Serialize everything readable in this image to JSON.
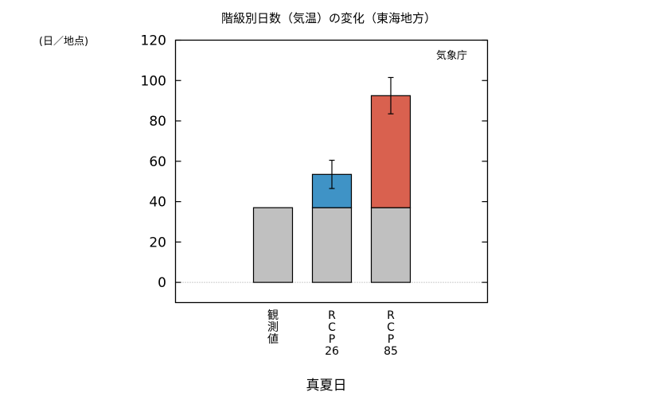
{
  "chart_data": {
    "type": "bar",
    "title": "階級別日数（気温）の変化（東海地方）",
    "ylabel": "(日／地点)",
    "xlabel": "真夏日",
    "credit": "気象庁",
    "ylim": [
      -10,
      120
    ],
    "yticks": [
      0,
      20,
      40,
      60,
      80,
      100,
      120
    ],
    "grid": false,
    "categories": [
      {
        "label_lines": [
          "観",
          "測",
          "値"
        ]
      },
      {
        "label_lines": [
          "R",
          "C",
          "P",
          "26"
        ]
      },
      {
        "label_lines": [
          "R",
          "C",
          "P",
          "85"
        ]
      }
    ],
    "series": [
      {
        "role": "base",
        "color": "#c0c0c0",
        "values": [
          37,
          37,
          37
        ]
      },
      {
        "role": "increase",
        "colors": [
          null,
          "#3f93c6",
          "#d9614f"
        ],
        "values": [
          0,
          16.5,
          55.5
        ],
        "totals": [
          37,
          53.5,
          92.5
        ]
      }
    ],
    "error_bars": [
      null,
      {
        "low": 46.5,
        "high": 60.5
      },
      {
        "low": 83.5,
        "high": 101.5
      }
    ]
  }
}
